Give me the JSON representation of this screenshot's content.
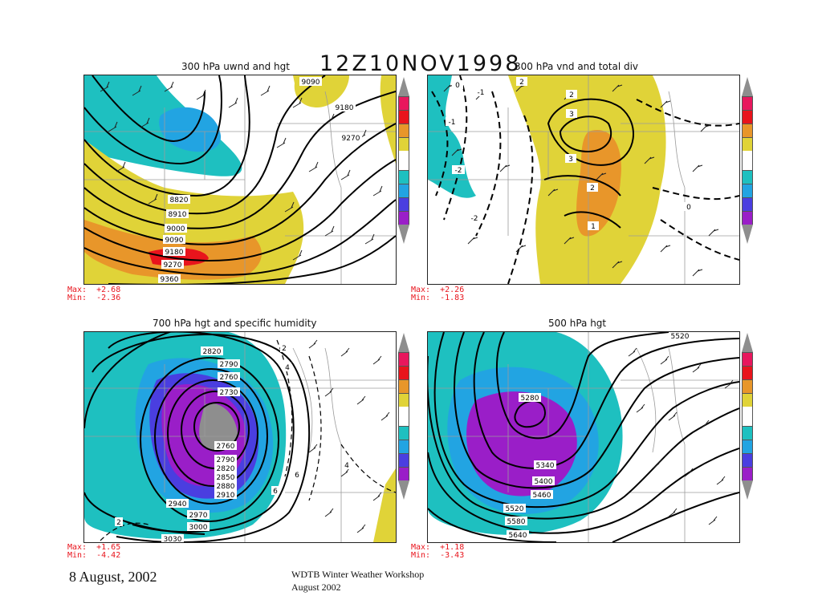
{
  "main_title": "12Z10NOV1998",
  "panels": {
    "p1": {
      "title": "300 hPa uwnd and hgt",
      "max_label": "Max:  +2.68",
      "min_label": "Min:  -2.36",
      "contours": [
        "9090",
        "9180",
        "9270",
        "8820",
        "8910",
        "9000",
        "9090",
        "9180",
        "9270",
        "9360"
      ]
    },
    "p2": {
      "title": "300 hPa vnd and total div",
      "max_label": "Max:  +2.26",
      "min_label": "Min:  -1.83",
      "contours": [
        "2",
        "3",
        "3",
        "2",
        "1",
        "0",
        "-2",
        "-1",
        "-2",
        "-1",
        "0",
        "2"
      ]
    },
    "p3": {
      "title": "700 hPa hgt and specific humidity",
      "max_label": "Max:  +1.65",
      "min_label": "Min:  -4.42",
      "contours": [
        "2820",
        "2790",
        "2760",
        "2730",
        "2760",
        "2790",
        "2820",
        "2850",
        "2880",
        "2910",
        "2940",
        "2970",
        "3000",
        "3030",
        "2",
        "4",
        "6",
        "6",
        "4",
        "2"
      ]
    },
    "p4": {
      "title": "500 hPa hgt",
      "max_label": "Max:  +1.18",
      "min_label": "Min:  -3.43",
      "contours": [
        "5520",
        "5280",
        "5340",
        "5400",
        "5460",
        "5520",
        "5580",
        "5640"
      ]
    }
  },
  "colorbar_colors": [
    "#e8175d",
    "#e8141c",
    "#e8962a",
    "#e0d338",
    "#1ec0c0",
    "#22a4e2",
    "#4a3ee0",
    "#9a1ec8"
  ],
  "footer": {
    "date": "8 August, 2002",
    "workshop_line1": "WDTB Winter Weather Workshop",
    "workshop_line2": "August 2002"
  }
}
